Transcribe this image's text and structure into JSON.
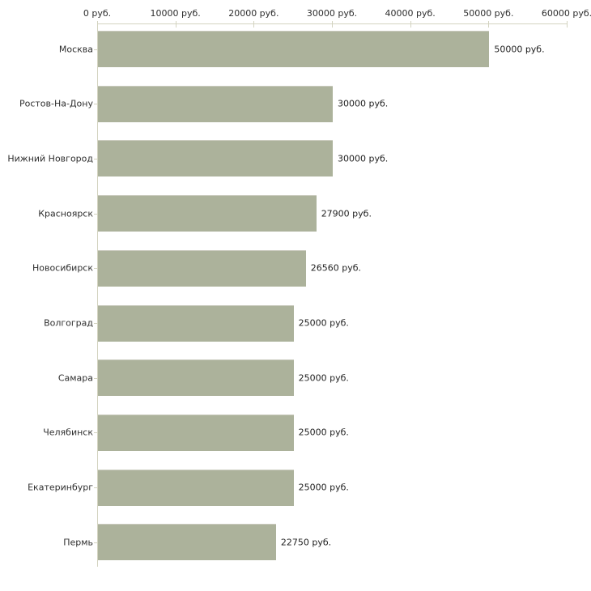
{
  "chart_data": {
    "type": "bar",
    "orientation": "horizontal",
    "title": "",
    "xlabel": "",
    "ylabel": "",
    "unit": "руб.",
    "xlim": [
      0,
      60000
    ],
    "grid": false,
    "legend": "none",
    "categories": [
      "Москва",
      "Ростов-На-Дону",
      "Нижний Новгород",
      "Красноярск",
      "Новосибирск",
      "Волгоград",
      "Самара",
      "Челябинск",
      "Екатеринбург",
      "Пермь"
    ],
    "values": [
      50000,
      30000,
      30000,
      27900,
      26560,
      25000,
      25000,
      25000,
      25000,
      22750
    ],
    "value_labels": [
      "50000 руб.",
      "30000 руб.",
      "30000 руб.",
      "27900 руб.",
      "26560 руб.",
      "25000 руб.",
      "25000 руб.",
      "25000 руб.",
      "25000 руб.",
      "22750 руб."
    ],
    "x_ticks": [
      {
        "value": 0,
        "label": "0 руб."
      },
      {
        "value": 10000,
        "label": "10000 руб."
      },
      {
        "value": 20000,
        "label": "20000 руб."
      },
      {
        "value": 30000,
        "label": "30000 руб."
      },
      {
        "value": 40000,
        "label": "40000 руб."
      },
      {
        "value": 50000,
        "label": "50000 руб."
      },
      {
        "value": 60000,
        "label": "60000 руб."
      }
    ],
    "colors": {
      "bar": "#acb29b",
      "axis": "#d3d3c0",
      "text": "#2e2e2e",
      "background": "#ffffff"
    }
  }
}
